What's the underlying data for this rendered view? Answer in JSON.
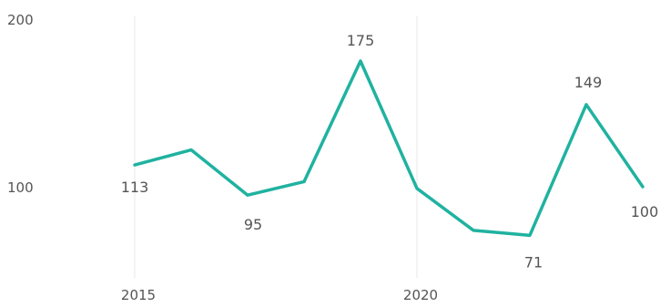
{
  "chart_data": {
    "type": "line",
    "x": [
      2015,
      2016,
      2017,
      2018,
      2019,
      2020,
      2021,
      2022,
      2023,
      2024
    ],
    "series": [
      {
        "values": [
          113,
          122,
          95,
          103,
          175,
          99,
          74,
          71,
          149,
          100
        ],
        "color": "#20b2a0"
      }
    ],
    "xticks": [
      "2015",
      "2020"
    ],
    "yticks": [
      "200",
      "100"
    ],
    "data_labels": [
      {
        "index": 0,
        "text": "113"
      },
      {
        "index": 2,
        "text": "95"
      },
      {
        "index": 4,
        "text": "175"
      },
      {
        "index": 7,
        "text": "71"
      },
      {
        "index": 8,
        "text": "149"
      },
      {
        "index": 9,
        "text": "100"
      }
    ],
    "ylim": [
      0,
      200
    ],
    "grid": "vertical",
    "title": "",
    "xlabel": "",
    "ylabel": ""
  }
}
